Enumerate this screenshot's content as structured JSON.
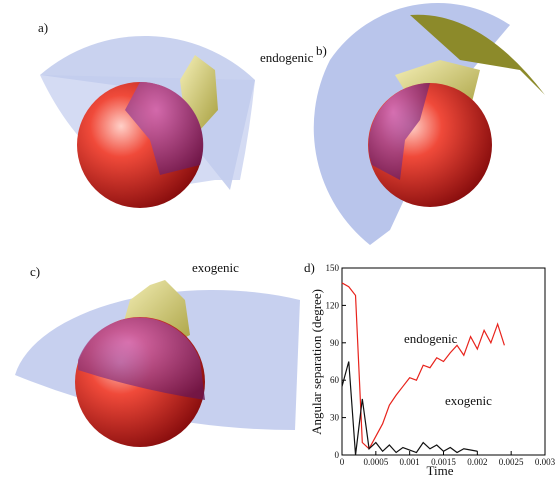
{
  "panels": {
    "a": "a)",
    "b": "b)",
    "c": "c)"
  },
  "annotations": {
    "panel_b": "endogenic",
    "panel_c": "exogenic"
  },
  "chart_data": {
    "type": "line",
    "label": "d)",
    "x_label": "Time",
    "y_label": "Angular separation (degree)",
    "x": [
      0,
      0.0001,
      0.0002,
      0.0003,
      0.0004,
      0.0005,
      0.0006,
      0.0007,
      0.0008,
      0.0009,
      0.001,
      0.0011,
      0.0012,
      0.0013,
      0.0014,
      0.0015,
      0.0016,
      0.0017,
      0.0018,
      0.0019,
      0.002,
      0.0021,
      0.0022,
      0.0023,
      0.0024
    ],
    "series": [
      {
        "name": "endogenic",
        "color": "#e8231c",
        "values": [
          138,
          135,
          128,
          10,
          5,
          15,
          25,
          40,
          48,
          55,
          62,
          60,
          72,
          70,
          78,
          75,
          82,
          88,
          80,
          95,
          85,
          100,
          90,
          105,
          88
        ]
      },
      {
        "name": "exogenic",
        "color": "#111111",
        "values": [
          55,
          75,
          0,
          45,
          5,
          10,
          3,
          8,
          2,
          6,
          4,
          2,
          10,
          5,
          8,
          3,
          6,
          2,
          5,
          4,
          3,
          null,
          null,
          null,
          null
        ]
      }
    ],
    "xlim": [
      0,
      0.003
    ],
    "xticks": [
      0,
      0.0005,
      0.001,
      0.0015,
      0.002,
      0.0025,
      0.003
    ],
    "ylim": [
      0,
      150
    ],
    "yticks": [
      0,
      30,
      60,
      90,
      120,
      150
    ]
  }
}
